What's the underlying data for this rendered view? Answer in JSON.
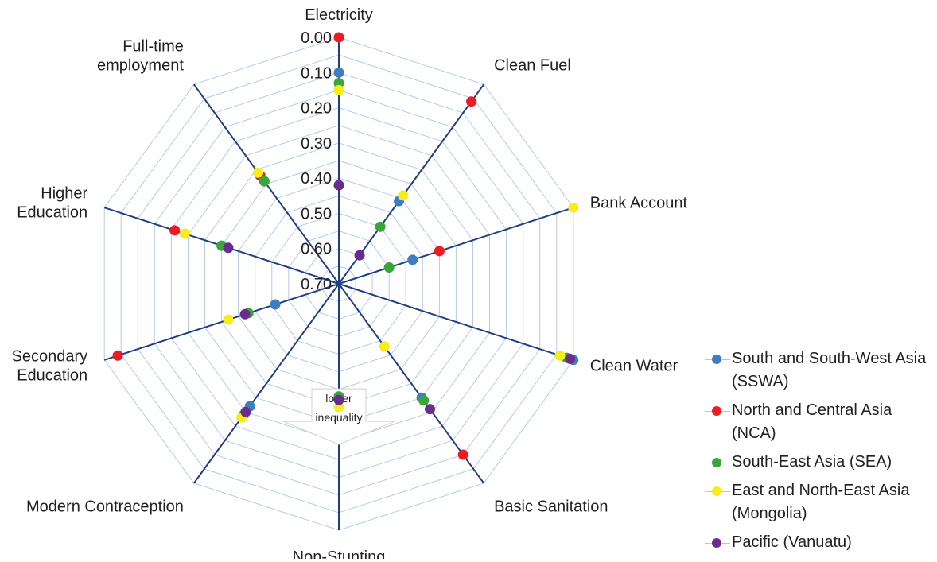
{
  "chart_data": {
    "type": "radar",
    "title": "",
    "axes": [
      "Electricity",
      "Clean Fuel",
      "Bank Account",
      "Clean Water",
      "Basic Sanitation",
      "Non-Stunting",
      "Modern Contraception",
      "Secondary Education",
      "Higher Education",
      "Full-time employment"
    ],
    "axis_label_lines": [
      [
        "Electricity"
      ],
      [
        "Clean Fuel"
      ],
      [
        "Bank Account"
      ],
      [
        "Clean Water"
      ],
      [
        "Basic Sanitation"
      ],
      [
        "Non-Stunting"
      ],
      [
        "Modern Contraception"
      ],
      [
        "Secondary",
        "Education"
      ],
      [
        "Higher",
        "Education"
      ],
      [
        "Full-time",
        "employment"
      ]
    ],
    "radial_scale": {
      "min": 0.0,
      "max": 0.7,
      "reversed": true,
      "ticks": [
        "0.00",
        "0.10",
        "0.20",
        "0.30",
        "0.40",
        "0.50",
        "0.60",
        "0.70"
      ],
      "grid": true
    },
    "annotation": {
      "lines": [
        "lower",
        "inequality"
      ]
    },
    "series": [
      {
        "name": "South and South-West Asia (SSWA)",
        "color": "#3d7ec2",
        "values": [
          0.1,
          0.41,
          0.48,
          0.0,
          0.3,
          0.38,
          0.27,
          0.51,
          null,
          0.34
        ]
      },
      {
        "name": "North and Central Asia (NCA)",
        "color": "#ed1c24",
        "values": [
          0.0,
          0.06,
          0.4,
          null,
          0.1,
          null,
          null,
          0.04,
          0.21,
          0.32
        ]
      },
      {
        "name": "South-East Asia (SEA)",
        "color": "#3aa639",
        "values": [
          0.13,
          0.5,
          0.55,
          0.02,
          0.29,
          0.38,
          0.24,
          0.43,
          0.35,
          0.34
        ]
      },
      {
        "name": "East and North-East Asia (Mongolia)",
        "color": "#f5ee1a",
        "values": [
          0.15,
          0.39,
          0.0,
          0.04,
          0.48,
          0.35,
          0.23,
          0.37,
          0.24,
          0.31
        ]
      },
      {
        "name": "Pacific (Vanuatu)",
        "color": "#6a2c91",
        "values": [
          0.42,
          0.6,
          null,
          0.01,
          0.26,
          0.37,
          0.25,
          0.42,
          0.37,
          null
        ]
      }
    ],
    "legend": {
      "position": "right"
    }
  }
}
